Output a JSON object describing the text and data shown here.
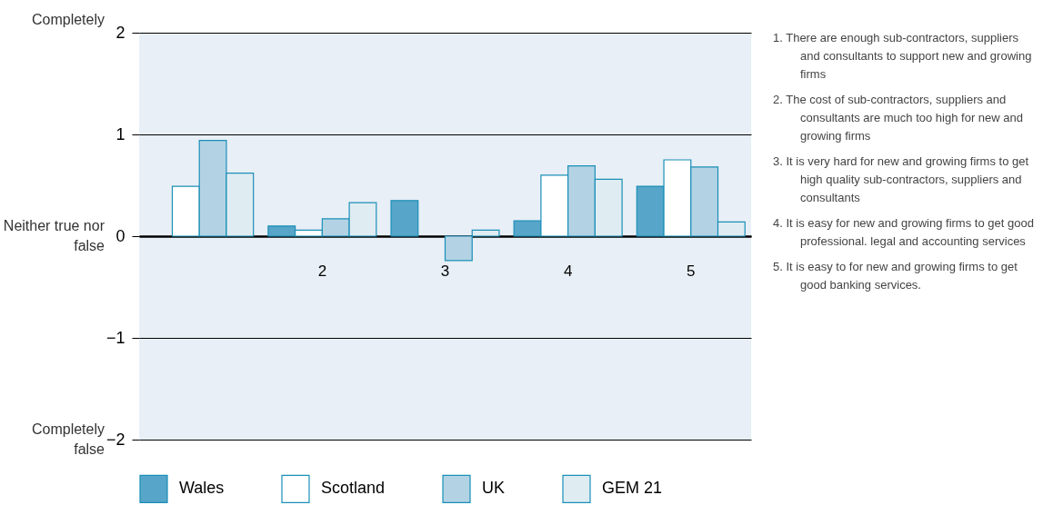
{
  "chart_data": {
    "type": "bar",
    "categories": [
      null,
      "2",
      "3",
      "4",
      "5"
    ],
    "series": [
      {
        "name": "Wales",
        "color": "#57a5c8",
        "values": [
          null,
          0.1,
          0.35,
          0.15,
          0.49
        ]
      },
      {
        "name": "Scotland",
        "color": "#ffffff",
        "values": [
          0.49,
          0.06,
          null,
          0.6,
          0.75
        ]
      },
      {
        "name": "UK",
        "color": "#b3d3e4",
        "values": [
          0.94,
          0.17,
          -0.24,
          0.69,
          0.68
        ]
      },
      {
        "name": "GEM 21",
        "color": "#dfecf2",
        "values": [
          0.62,
          0.33,
          0.06,
          0.56,
          0.14
        ]
      }
    ],
    "ylim": [
      -2,
      2
    ],
    "yticks": [
      -2,
      -1,
      0,
      1,
      2
    ],
    "grid": "y",
    "legend": "bottom",
    "annotations": [
      "Completely",
      "Neither true nor false",
      "Completely false",
      "1. There are enough sub-contractors, suppliers and consultants to support new and growing firms",
      "2. The cost of sub-contractors, suppliers and consultants are much too high for new and growing firms",
      "3. It is very hard for new and growing firms to get high quality sub-contractors, suppliers and consultants",
      "4. It is easy for new and growing firms to get good professional. legal and accounting services",
      "5. It is easy to for new and growing firms to get good banking services."
    ]
  }
}
